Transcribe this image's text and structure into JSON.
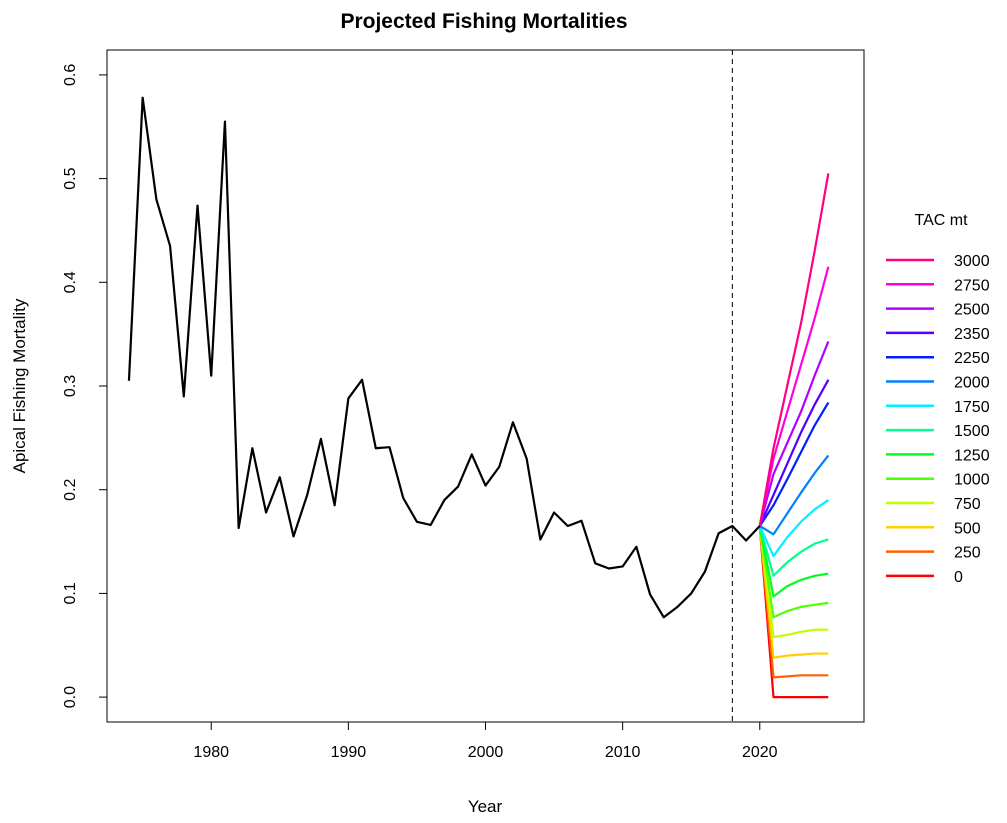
{
  "chart_data": {
    "type": "line",
    "title": "Projected Fishing Mortalities",
    "xlabel": "Year",
    "ylabel": "Apical Fishing Mortality",
    "xlim": [
      1972.4,
      2027.6
    ],
    "ylim": [
      -0.024,
      0.624
    ],
    "x_ticks": [
      1980,
      1990,
      2000,
      2010,
      2020
    ],
    "y_ticks": [
      0.0,
      0.1,
      0.2,
      0.3,
      0.4,
      0.5,
      0.6
    ],
    "y_tick_labels": [
      "0.0",
      "0.1",
      "0.2",
      "0.3",
      "0.4",
      "0.5",
      "0.6"
    ],
    "reference_line": {
      "x": 2018,
      "style": "dashed"
    },
    "grid": false,
    "legend": {
      "title": "TAC mt",
      "placement": "right"
    },
    "historical": {
      "color": "#000000",
      "x": [
        1974,
        1975,
        1976,
        1977,
        1978,
        1979,
        1980,
        1981,
        1982,
        1983,
        1984,
        1985,
        1986,
        1987,
        1988,
        1989,
        1990,
        1991,
        1992,
        1993,
        1994,
        1995,
        1996,
        1997,
        1998,
        1999,
        2000,
        2001,
        2002,
        2003,
        2004,
        2005,
        2006,
        2007,
        2008,
        2009,
        2010,
        2011,
        2012,
        2013,
        2014,
        2015,
        2016,
        2017,
        2018,
        2019,
        2020
      ],
      "y": [
        0.305,
        0.578,
        0.48,
        0.435,
        0.29,
        0.474,
        0.31,
        0.555,
        0.163,
        0.24,
        0.178,
        0.212,
        0.155,
        0.195,
        0.249,
        0.185,
        0.288,
        0.306,
        0.24,
        0.241,
        0.192,
        0.169,
        0.166,
        0.19,
        0.203,
        0.234,
        0.204,
        0.222,
        0.265,
        0.23,
        0.152,
        0.178,
        0.165,
        0.17,
        0.129,
        0.124,
        0.126,
        0.145,
        0.099,
        0.077,
        0.087,
        0.1,
        0.121,
        0.158,
        0.165,
        0.151,
        0.165
      ]
    },
    "projection_x": [
      2020,
      2021,
      2022,
      2023,
      2024,
      2025
    ],
    "series": [
      {
        "name": "3000",
        "color": "#FF0080",
        "values": [
          0.165,
          0.24,
          0.3,
          0.36,
          0.43,
          0.505
        ]
      },
      {
        "name": "2750",
        "color": "#FF00E0",
        "values": [
          0.165,
          0.23,
          0.275,
          0.32,
          0.365,
          0.415
        ]
      },
      {
        "name": "2500",
        "color": "#B400FF",
        "values": [
          0.165,
          0.215,
          0.245,
          0.275,
          0.31,
          0.343
        ]
      },
      {
        "name": "2350",
        "color": "#5000FF",
        "values": [
          0.165,
          0.195,
          0.225,
          0.255,
          0.282,
          0.306
        ]
      },
      {
        "name": "2250",
        "color": "#0020FF",
        "values": [
          0.165,
          0.185,
          0.21,
          0.236,
          0.262,
          0.284
        ]
      },
      {
        "name": "2000",
        "color": "#0080FF",
        "values": [
          0.165,
          0.157,
          0.177,
          0.197,
          0.216,
          0.233
        ]
      },
      {
        "name": "1750",
        "color": "#00F0FF",
        "values": [
          0.165,
          0.136,
          0.154,
          0.169,
          0.181,
          0.19
        ]
      },
      {
        "name": "1500",
        "color": "#00FF90",
        "values": [
          0.165,
          0.117,
          0.13,
          0.14,
          0.148,
          0.152
        ]
      },
      {
        "name": "1250",
        "color": "#00FF20",
        "values": [
          0.165,
          0.097,
          0.107,
          0.113,
          0.117,
          0.119
        ]
      },
      {
        "name": "1000",
        "color": "#50FF00",
        "values": [
          0.165,
          0.077,
          0.083,
          0.087,
          0.089,
          0.091
        ]
      },
      {
        "name": "750",
        "color": "#C0FF00",
        "values": [
          0.165,
          0.058,
          0.06,
          0.063,
          0.065,
          0.065
        ]
      },
      {
        "name": "500",
        "color": "#FFD000",
        "values": [
          0.165,
          0.038,
          0.04,
          0.041,
          0.042,
          0.042
        ]
      },
      {
        "name": "250",
        "color": "#FF6000",
        "values": [
          0.165,
          0.019,
          0.02,
          0.021,
          0.021,
          0.021
        ]
      },
      {
        "name": "0",
        "color": "#FF0000",
        "values": [
          0.165,
          0.0,
          0.0,
          0.0,
          0.0,
          0.0
        ]
      }
    ]
  }
}
